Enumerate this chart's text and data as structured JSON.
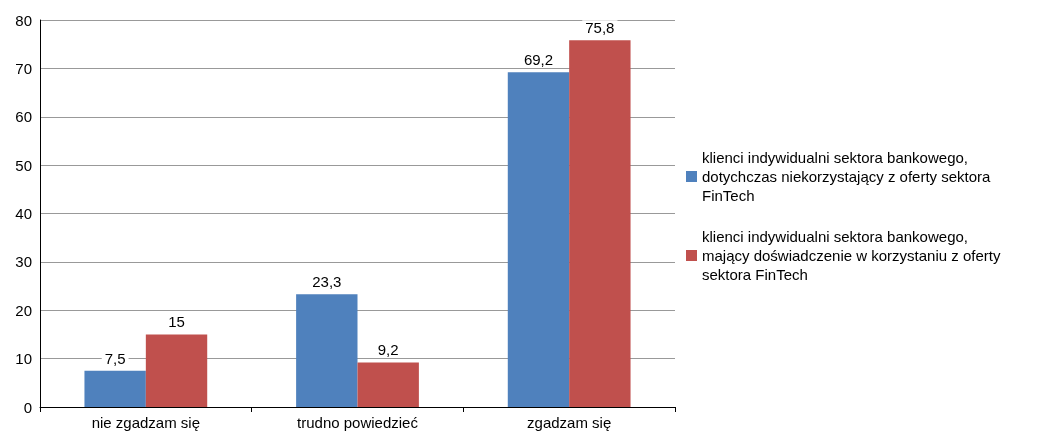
{
  "chart_data": {
    "type": "bar",
    "categories": [
      "nie zgadzam się",
      "trudno powiedzieć",
      "zgadzam się"
    ],
    "series": [
      {
        "name": "klienci indywidualni sektora bankowego, dotychczas niekorzystający z oferty sektora FinTech",
        "color": "#4f81bd",
        "values": [
          7.5,
          23.3,
          69.2
        ],
        "value_labels": [
          "7,5",
          "23,3",
          "69,2"
        ]
      },
      {
        "name": "klienci indywidualni sektora bankowego, mający doświadczenie w korzystaniu z oferty sektora FinTech",
        "color": "#c0504d",
        "values": [
          15,
          9.2,
          75.8
        ],
        "value_labels": [
          "15",
          "9,2",
          "75,8"
        ]
      }
    ],
    "ylim": [
      0,
      80
    ],
    "yticks": [
      0,
      10,
      20,
      30,
      40,
      50,
      60,
      70,
      80
    ],
    "grid": "y",
    "legend": "right"
  }
}
